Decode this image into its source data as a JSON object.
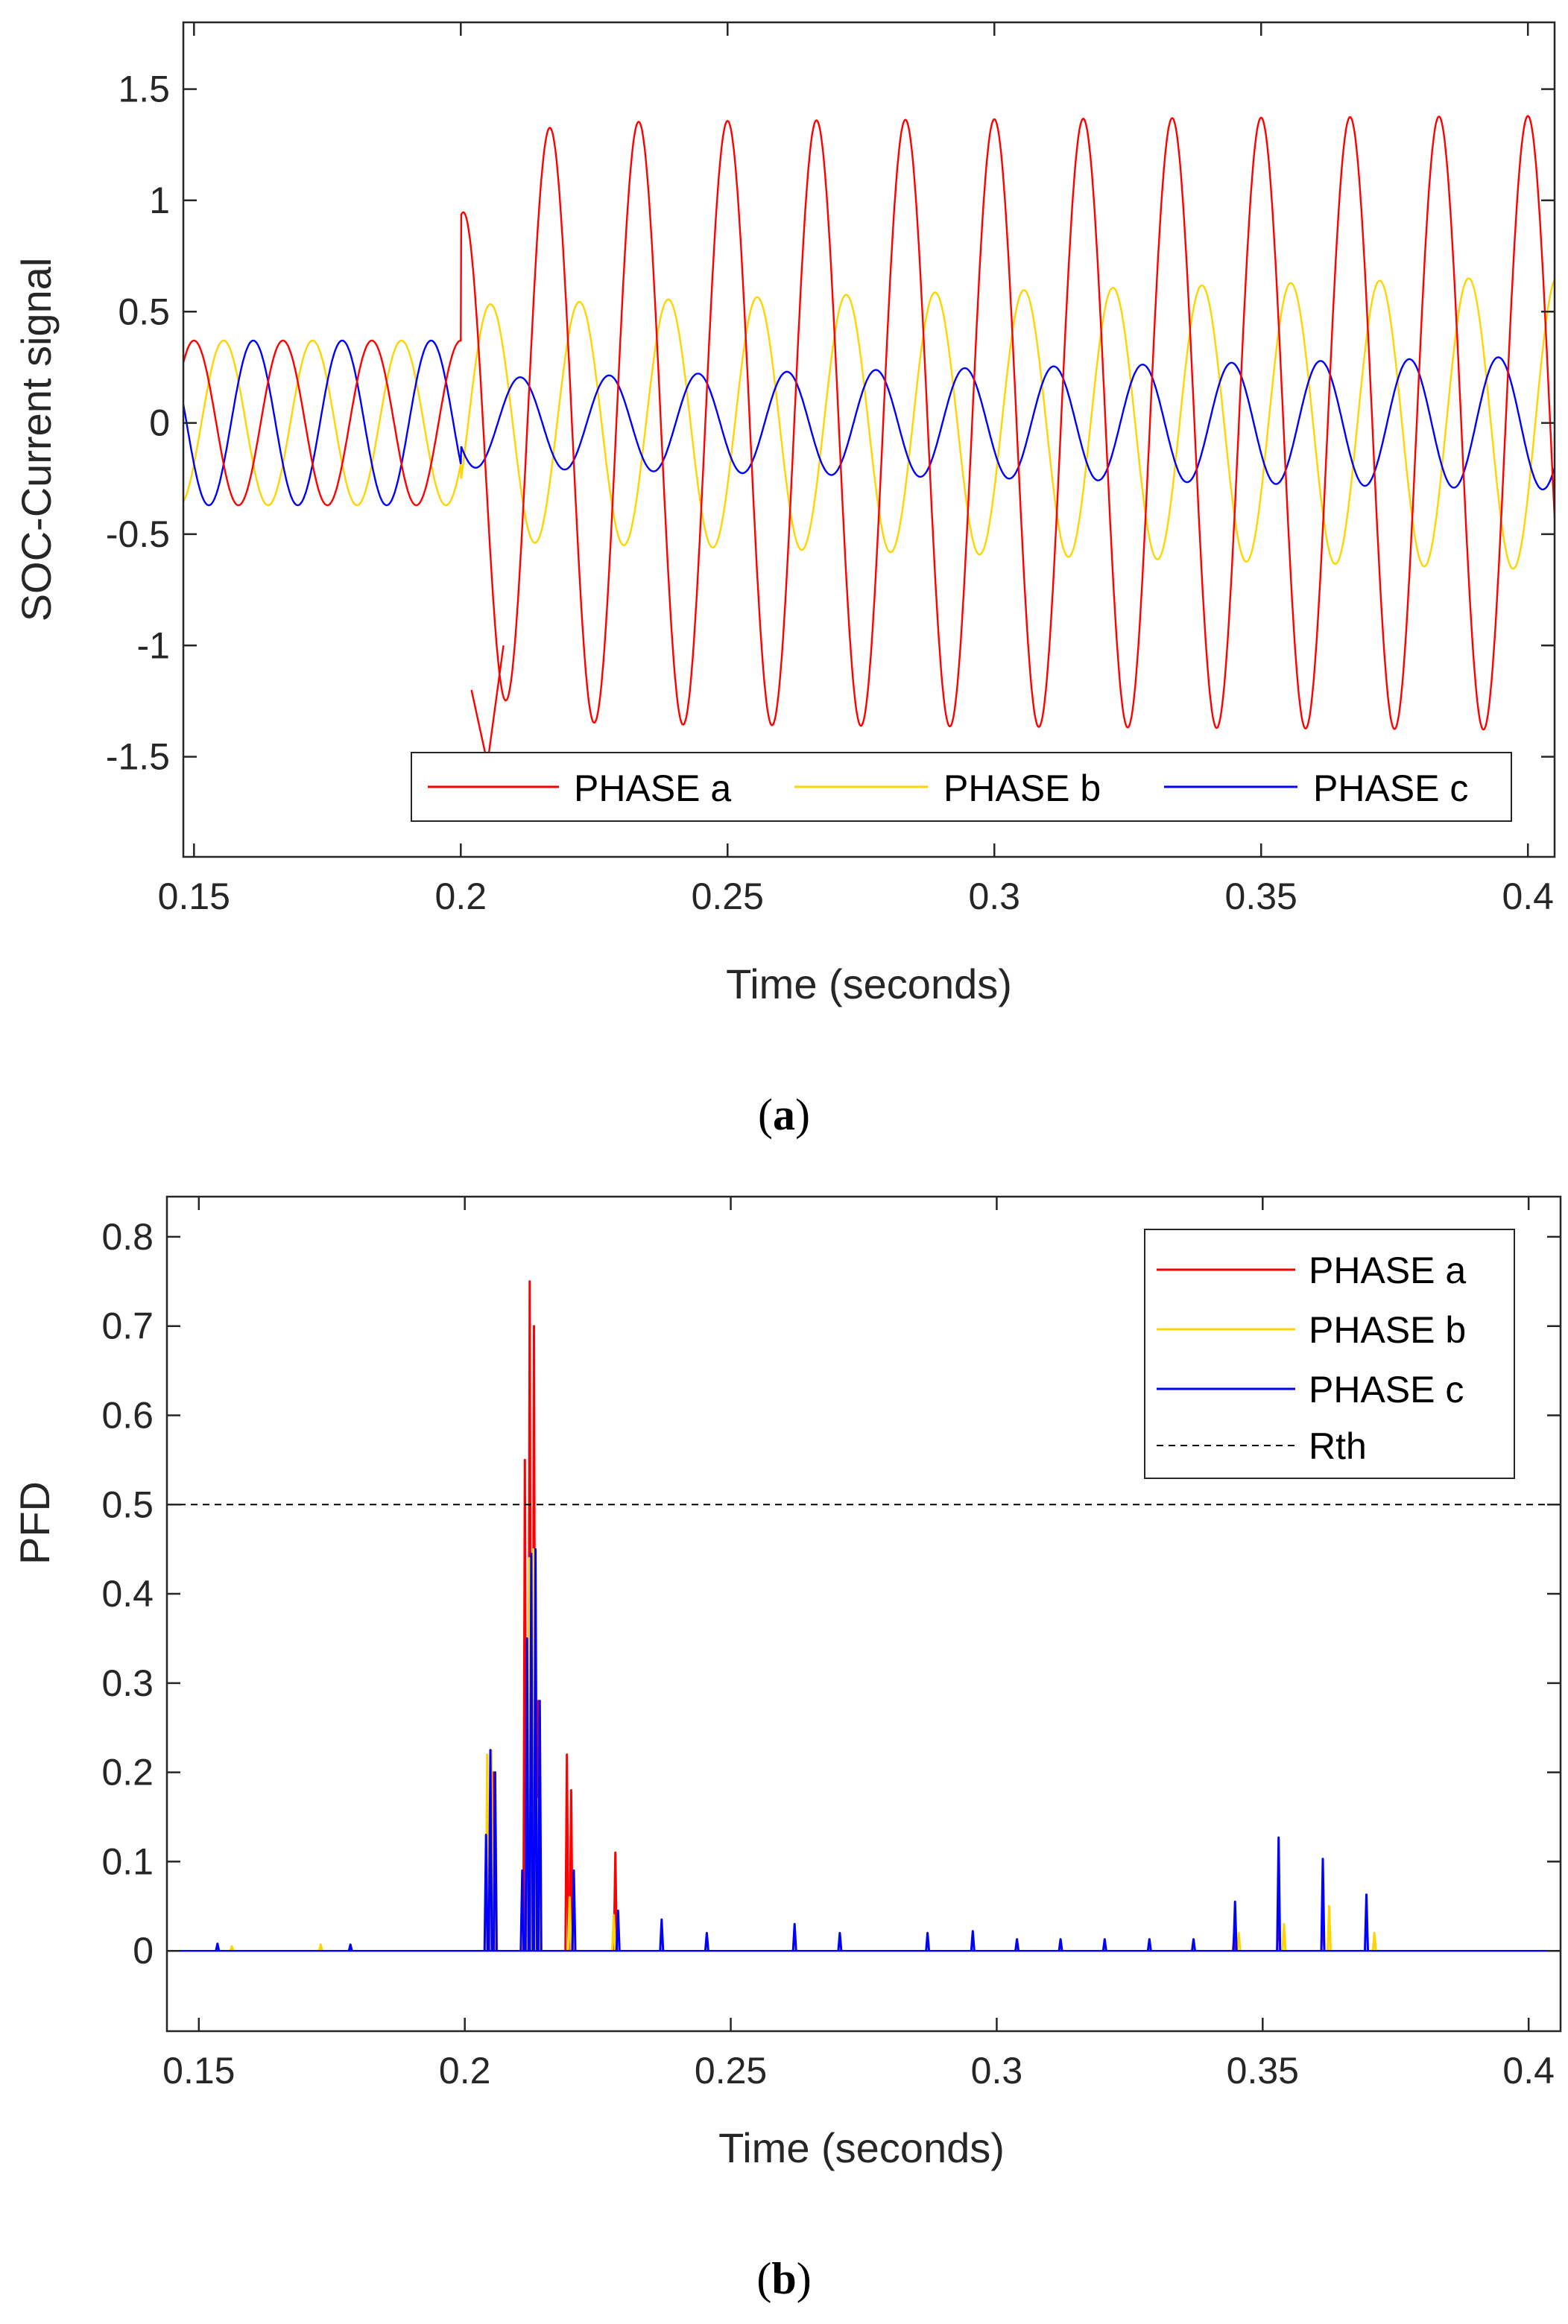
{
  "colors": {
    "phase_a": "#ff0000",
    "phase_b": "#ffd400",
    "phase_c": "#0000ff",
    "rth": "#000000",
    "axis": "#000000",
    "text": "#262626"
  },
  "chart_data": [
    {
      "id": "a",
      "type": "line",
      "caption": "(a)",
      "caption_letter": "a",
      "xlabel": "Time (seconds)",
      "ylabel": "SOC-Current signal",
      "xlim": [
        0.148,
        0.405
      ],
      "ylim": [
        -1.95,
        1.8
      ],
      "x_ticks": [
        0.15,
        0.2,
        0.25,
        0.3,
        0.35,
        0.4
      ],
      "x_tick_labels": [
        "0.15",
        "0.2",
        "0.25",
        "0.3",
        "0.35",
        "0.4"
      ],
      "y_ticks": [
        -1.5,
        -1,
        -0.5,
        0,
        0.5,
        1,
        1.5
      ],
      "y_tick_labels": [
        "-1.5",
        "-1",
        "-0.5",
        "0",
        "0.5",
        "1",
        "1.5"
      ],
      "legend": {
        "placement": "bottom-right",
        "orientation": "horizontal",
        "entries": [
          "PHASE a",
          "PHASE b",
          "PHASE c"
        ]
      },
      "signal_model": {
        "frequency_hz": 60,
        "pre_fault": {
          "t_end": 0.2,
          "amplitude": [
            0.37,
            0.37,
            0.37
          ],
          "phase_deg": [
            0,
            -120,
            120
          ]
        },
        "fault_inception": 0.2,
        "post_fault_amplitude": [
          1.35,
          0.53,
          0.2
        ],
        "end_amplitude": [
          1.38,
          0.66,
          0.3
        ],
        "transient_peak": {
          "series": "PHASE a",
          "value": -1.53,
          "time": 0.205
        }
      },
      "series": [
        {
          "name": "PHASE a",
          "color_key": "phase_a"
        },
        {
          "name": "PHASE b",
          "color_key": "phase_b"
        },
        {
          "name": "PHASE c",
          "color_key": "phase_c"
        }
      ]
    },
    {
      "id": "b",
      "type": "line",
      "caption": "(b)",
      "caption_letter": "b",
      "xlabel": "Time (seconds)",
      "ylabel": "PFD",
      "xlim": [
        0.144,
        0.406
      ],
      "ylim": [
        -0.09,
        0.845
      ],
      "x_ticks": [
        0.15,
        0.2,
        0.25,
        0.3,
        0.35,
        0.4
      ],
      "x_tick_labels": [
        "0.15",
        "0.2",
        "0.25",
        "0.3",
        "0.35",
        "0.4"
      ],
      "y_ticks": [
        0,
        0.1,
        0.2,
        0.3,
        0.4,
        0.5,
        0.6,
        0.7,
        0.8
      ],
      "y_tick_labels": [
        "0",
        "0.1",
        "0.2",
        "0.3",
        "0.4",
        "0.5",
        "0.6",
        "0.7",
        "0.8"
      ],
      "legend": {
        "placement": "top-right",
        "orientation": "vertical",
        "entries": [
          "PHASE a",
          "PHASE b",
          "PHASE c",
          "Rth"
        ]
      },
      "threshold": {
        "name": "Rth",
        "value": 0.5
      },
      "series": [
        {
          "name": "PHASE a",
          "color_key": "phase_a",
          "spikes": [
            [
              0.2045,
              0.14
            ],
            [
              0.2053,
              0.2
            ],
            [
              0.2113,
              0.55
            ],
            [
              0.2122,
              0.75
            ],
            [
              0.213,
              0.7
            ],
            [
              0.2138,
              0.28
            ],
            [
              0.2192,
              0.22
            ],
            [
              0.22,
              0.18
            ],
            [
              0.2283,
              0.11
            ],
            [
              0.3447,
              0.025
            ],
            [
              0.353,
              0.05
            ],
            [
              0.3613,
              0.05
            ]
          ]
        },
        {
          "name": "PHASE b",
          "color_key": "phase_b",
          "spikes": [
            [
              0.1562,
              0.005
            ],
            [
              0.1729,
              0.007
            ],
            [
              0.2042,
              0.22
            ],
            [
              0.205,
              0.225
            ],
            [
              0.2058,
              0.14
            ],
            [
              0.2121,
              0.44
            ],
            [
              0.2129,
              0.45
            ],
            [
              0.2137,
              0.17
            ],
            [
              0.2197,
              0.06
            ],
            [
              0.228,
              0.04
            ],
            [
              0.3455,
              0.02
            ],
            [
              0.354,
              0.03
            ],
            [
              0.3625,
              0.05
            ],
            [
              0.371,
              0.02
            ]
          ]
        },
        {
          "name": "PHASE c",
          "color_key": "phase_c",
          "spikes": [
            [
              0.1535,
              0.008
            ],
            [
              0.1785,
              0.007
            ],
            [
              0.204,
              0.13
            ],
            [
              0.2048,
              0.225
            ],
            [
              0.2057,
              0.2
            ],
            [
              0.2108,
              0.09
            ],
            [
              0.2117,
              0.35
            ],
            [
              0.2125,
              0.445
            ],
            [
              0.2133,
              0.45
            ],
            [
              0.2141,
              0.28
            ],
            [
              0.2205,
              0.09
            ],
            [
              0.2288,
              0.045
            ],
            [
              0.237,
              0.035
            ],
            [
              0.2455,
              0.02
            ],
            [
              0.262,
              0.03
            ],
            [
              0.2705,
              0.02
            ],
            [
              0.287,
              0.02
            ],
            [
              0.2955,
              0.022
            ],
            [
              0.3038,
              0.013
            ],
            [
              0.312,
              0.013
            ],
            [
              0.3203,
              0.013
            ],
            [
              0.3287,
              0.013
            ],
            [
              0.337,
              0.013
            ],
            [
              0.3448,
              0.055
            ],
            [
              0.353,
              0.127
            ],
            [
              0.3613,
              0.103
            ],
            [
              0.3695,
              0.063
            ]
          ]
        }
      ]
    }
  ]
}
